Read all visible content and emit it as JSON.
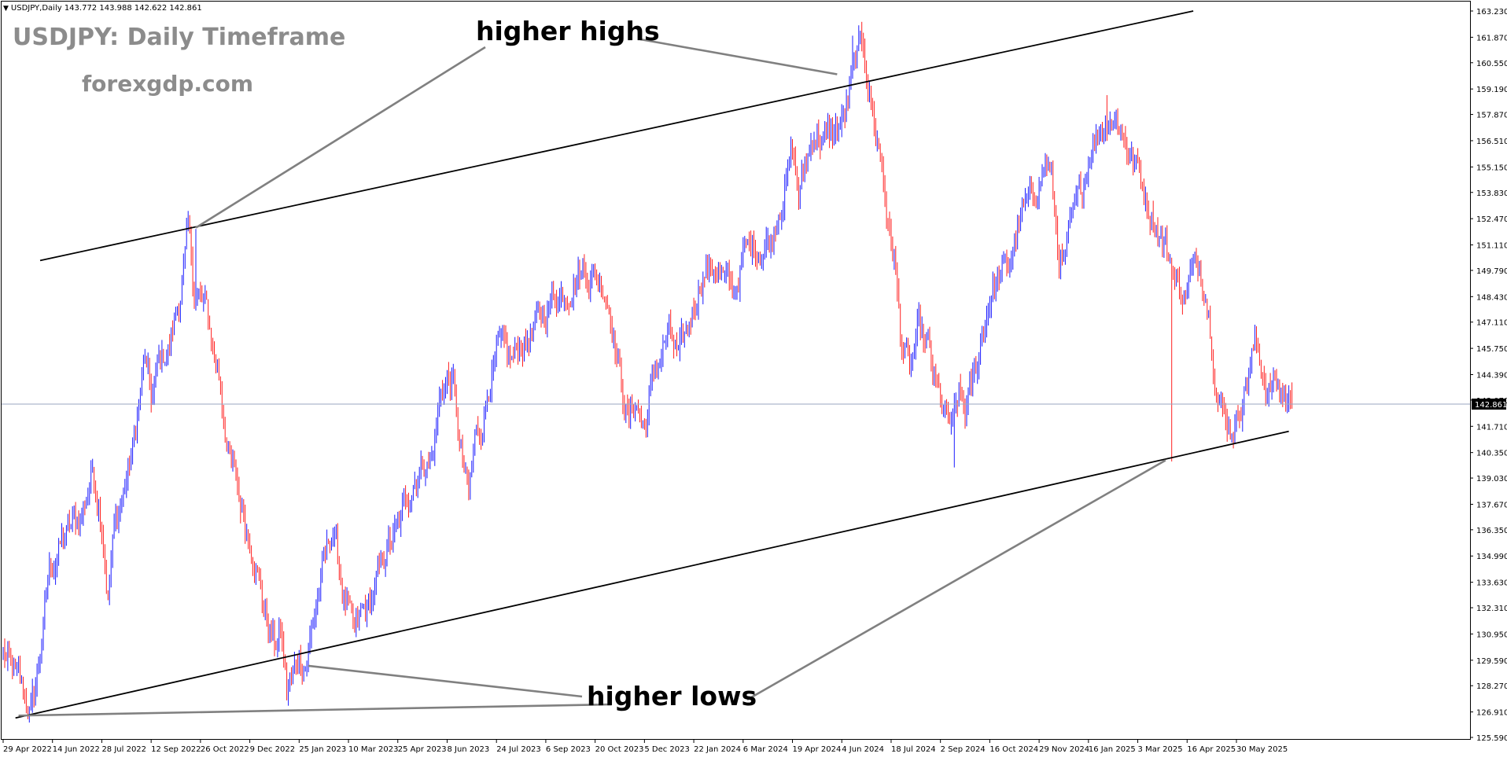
{
  "window": {
    "symbol_info": "USDJPY,Daily  143.772 143.988 142.622 142.861"
  },
  "watermark": {
    "title": "USDJPY: Daily Timeframe",
    "site": "forexgdp.com"
  },
  "annotations": {
    "top": "higher highs",
    "bottom": "higher lows"
  },
  "colors": {
    "bull": "#1a1aff",
    "bear": "#ff2020",
    "trendline": "#000000",
    "pointer": "#808080",
    "price_line": "#9aa6bf",
    "price_tag_bg": "#000000",
    "price_tag_text": "#ffffff"
  },
  "chart_data": {
    "type": "candlestick",
    "symbol": "USDJPY",
    "timeframe": "Daily",
    "last_price": 142.861,
    "ylim": [
      125.59,
      163.23
    ],
    "y_ticks": [
      "163.230",
      "161.870",
      "160.550",
      "159.190",
      "157.870",
      "156.510",
      "155.150",
      "153.830",
      "152.470",
      "151.110",
      "149.790",
      "148.430",
      "147.110",
      "145.750",
      "144.390",
      "143.070",
      "141.710",
      "140.350",
      "139.030",
      "137.670",
      "136.350",
      "134.990",
      "133.630",
      "132.310",
      "130.950",
      "129.590",
      "128.270",
      "126.910",
      "125.590"
    ],
    "x_ticks": [
      "29 Apr 2022",
      "14 Jun 2022",
      "28 Jul 2022",
      "12 Sep 2022",
      "26 Oct 2022",
      "9 Dec 2022",
      "25 Jan 2023",
      "10 Mar 2023",
      "25 Apr 2023",
      "8 Jun 2023",
      "24 Jul 2023",
      "6 Sep 2023",
      "20 Oct 2023",
      "5 Dec 2023",
      "22 Jan 2024",
      "6 Mar 2024",
      "19 Apr 2024",
      "4 Jun 2024",
      "18 Jul 2024",
      "2 Sep 2024",
      "16 Oct 2024",
      "29 Nov 2024",
      "16 Jan 2025",
      "3 Mar 2025",
      "16 Apr 2025",
      "30 May 2025"
    ],
    "x_tick_bar_index": [
      0,
      32,
      64,
      96,
      128,
      160,
      192,
      224,
      256,
      288,
      320,
      352,
      384,
      416,
      448,
      480,
      512,
      544,
      576,
      608,
      640,
      672,
      704,
      736,
      768,
      800
    ],
    "anchors": [
      [
        0,
        130.0
      ],
      [
        4,
        129.2
      ],
      [
        10,
        128.5
      ],
      [
        18,
        126.9
      ],
      [
        22,
        128.6
      ],
      [
        30,
        134.2
      ],
      [
        40,
        136.0
      ],
      [
        50,
        137.0
      ],
      [
        58,
        139.4
      ],
      [
        64,
        137.0
      ],
      [
        68,
        133.0
      ],
      [
        72,
        136.5
      ],
      [
        78,
        138.2
      ],
      [
        84,
        140.5
      ],
      [
        92,
        145.2
      ],
      [
        96,
        143.0
      ],
      [
        100,
        144.7
      ],
      [
        108,
        145.9
      ],
      [
        114,
        148.2
      ],
      [
        120,
        151.5
      ],
      [
        124,
        148.7
      ],
      [
        128,
        148.2
      ],
      [
        132,
        147.6
      ],
      [
        140,
        144.3
      ],
      [
        146,
        140.5
      ],
      [
        150,
        139.0
      ],
      [
        156,
        137.0
      ],
      [
        162,
        135.5
      ],
      [
        168,
        133.0
      ],
      [
        172,
        131.5
      ],
      [
        176,
        130.3
      ],
      [
        180,
        131.0
      ],
      [
        184,
        128.0
      ],
      [
        188,
        128.7
      ],
      [
        192,
        130.0
      ],
      [
        196,
        129.5
      ],
      [
        202,
        132.0
      ],
      [
        208,
        134.5
      ],
      [
        214,
        136.5
      ],
      [
        220,
        133.3
      ],
      [
        224,
        132.0
      ],
      [
        228,
        130.5
      ],
      [
        232,
        131.8
      ],
      [
        238,
        132.5
      ],
      [
        244,
        134.0
      ],
      [
        250,
        135.5
      ],
      [
        256,
        136.2
      ],
      [
        264,
        138.6
      ],
      [
        270,
        139.8
      ],
      [
        278,
        140.0
      ],
      [
        284,
        143.5
      ],
      [
        288,
        144.2
      ],
      [
        292,
        143.8
      ],
      [
        296,
        140.5
      ],
      [
        302,
        138.0
      ],
      [
        306,
        141.0
      ],
      [
        310,
        141.6
      ],
      [
        316,
        144.5
      ],
      [
        322,
        145.5
      ],
      [
        330,
        145.0
      ],
      [
        336,
        146.0
      ],
      [
        344,
        146.5
      ],
      [
        352,
        147.7
      ],
      [
        358,
        148.6
      ],
      [
        366,
        148.9
      ],
      [
        372,
        149.7
      ],
      [
        378,
        149.8
      ],
      [
        384,
        149.5
      ],
      [
        390,
        149.0
      ],
      [
        394,
        147.8
      ],
      [
        398,
        145.5
      ],
      [
        402,
        143.5
      ],
      [
        406,
        142.0
      ],
      [
        410,
        143.0
      ],
      [
        416,
        141.6
      ],
      [
        420,
        143.5
      ],
      [
        426,
        145.4
      ],
      [
        432,
        146.5
      ],
      [
        438,
        145.0
      ],
      [
        444,
        146.7
      ],
      [
        448,
        148.0
      ],
      [
        454,
        149.8
      ],
      [
        462,
        150.0
      ],
      [
        468,
        149.2
      ],
      [
        474,
        148.5
      ],
      [
        480,
        150.5
      ],
      [
        486,
        151.0
      ],
      [
        492,
        151.0
      ],
      [
        498,
        151.5
      ],
      [
        504,
        153.5
      ],
      [
        508,
        154.5
      ],
      [
        512,
        156.0
      ],
      [
        516,
        153.5
      ],
      [
        520,
        155.0
      ],
      [
        526,
        157.0
      ],
      [
        534,
        156.5
      ],
      [
        540,
        157.0
      ],
      [
        546,
        157.8
      ],
      [
        550,
        159.5
      ],
      [
        554,
        160.8
      ],
      [
        558,
        161.5
      ],
      [
        562,
        159.0
      ],
      [
        566,
        157.0
      ],
      [
        570,
        155.5
      ],
      [
        574,
        152.0
      ],
      [
        578,
        150.5
      ],
      [
        582,
        146.5
      ],
      [
        588,
        144.5
      ],
      [
        594,
        146.5
      ],
      [
        600,
        145.5
      ],
      [
        606,
        143.3
      ],
      [
        612,
        142.0
      ],
      [
        616,
        141.6
      ],
      [
        620,
        143.2
      ],
      [
        624,
        142.5
      ],
      [
        628,
        143.5
      ],
      [
        634,
        146.0
      ],
      [
        640,
        148.5
      ],
      [
        646,
        149.5
      ],
      [
        652,
        149.8
      ],
      [
        658,
        152.0
      ],
      [
        664,
        153.0
      ],
      [
        670,
        154.0
      ],
      [
        676,
        155.5
      ],
      [
        680,
        154.5
      ],
      [
        684,
        151.0
      ],
      [
        688,
        150.0
      ],
      [
        694,
        152.3
      ],
      [
        700,
        154.0
      ],
      [
        706,
        156.5
      ],
      [
        712,
        157.2
      ],
      [
        718,
        158.0
      ],
      [
        724,
        157.5
      ],
      [
        730,
        156.0
      ],
      [
        736,
        155.0
      ],
      [
        742,
        153.5
      ],
      [
        748,
        152.2
      ],
      [
        754,
        151.0
      ],
      [
        760,
        149.5
      ],
      [
        766,
        148.5
      ],
      [
        770,
        149.5
      ],
      [
        776,
        150.0
      ],
      [
        780,
        149.0
      ],
      [
        784,
        146.5
      ],
      [
        788,
        143.5
      ],
      [
        792,
        142.2
      ],
      [
        796,
        141.8
      ],
      [
        800,
        142.0
      ],
      [
        804,
        143.5
      ],
      [
        808,
        144.6
      ],
      [
        812,
        146.0
      ],
      [
        816,
        145.0
      ],
      [
        820,
        143.5
      ],
      [
        826,
        144.0
      ],
      [
        832,
        143.0
      ],
      [
        836,
        142.86
      ]
    ],
    "notable_extremes": {
      "high_oct_2022": 151.94,
      "high_jul_2024": 161.95,
      "high_jan_2025": 158.87,
      "low_may_2022": 126.36,
      "low_jan_2023": 127.23,
      "low_sep_2024": 139.58,
      "low_apr_2025": 139.89
    },
    "trendlines": [
      {
        "name": "upper channel",
        "from": {
          "bar": 24,
          "price": 150.3
        },
        "to": {
          "bar": 772,
          "price": 163.23
        }
      },
      {
        "name": "lower channel",
        "from": {
          "bar": 8,
          "price": 126.6
        },
        "to": {
          "bar": 834,
          "price": 141.45
        }
      }
    ],
    "pointer_targets": {
      "top": [
        {
          "bar": 125,
          "price": 152.0
        },
        {
          "bar": 541,
          "price": 159.95
        }
      ],
      "bottom": [
        {
          "bar": 198,
          "price": 129.3
        },
        {
          "bar": 10,
          "price": 126.72
        },
        {
          "bar": 754,
          "price": 139.95
        }
      ]
    }
  }
}
